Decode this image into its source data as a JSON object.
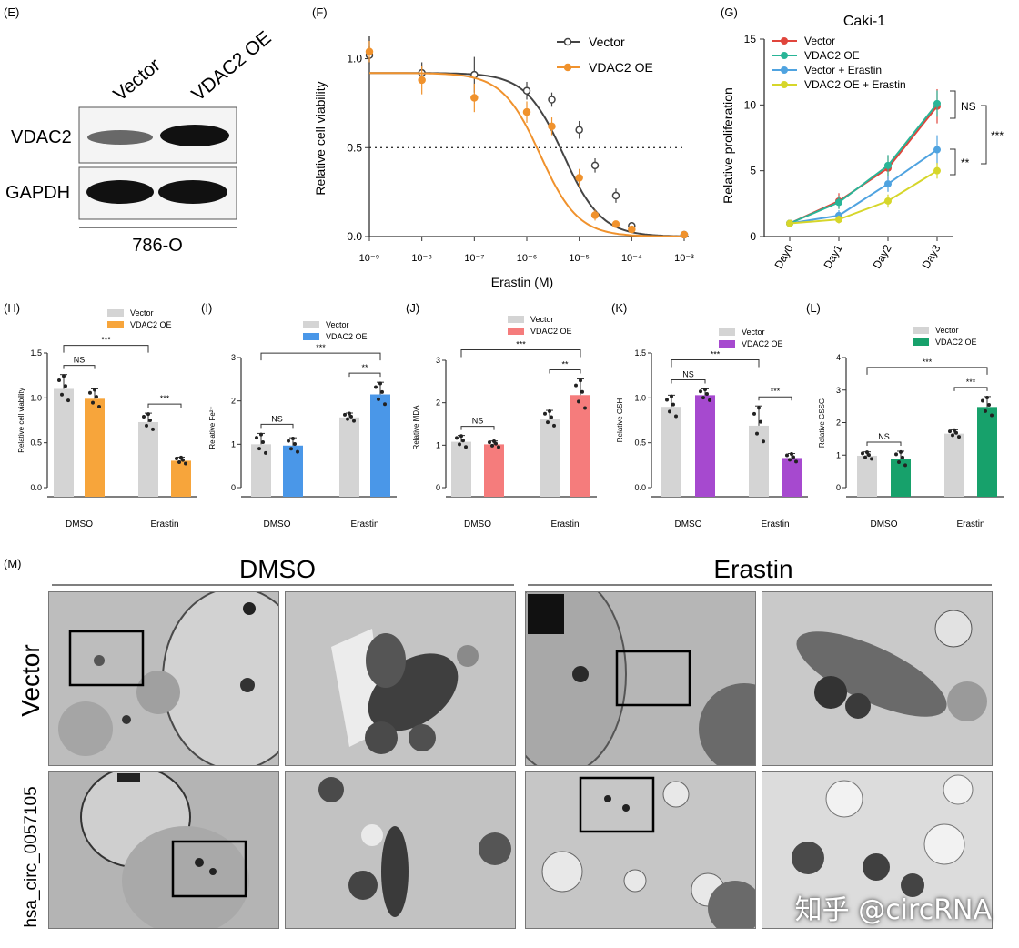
{
  "panels": {
    "E": {
      "label": "(E)",
      "lanes": [
        "Vector",
        "VDAC2 OE"
      ],
      "bands": [
        "VDAC2",
        "GAPDH"
      ],
      "cell_line": "786-O"
    },
    "M": {
      "label": "(M)",
      "conditions": [
        "DMSO",
        "Erastin"
      ],
      "rows": [
        "Vector",
        "hsa_circ_0057105"
      ]
    }
  },
  "watermark": "知乎 @circRNA",
  "colors": {
    "vector": "#d4d4d4",
    "vector_line": "#444444",
    "vdac2_f": "#f0922d",
    "red": "#e0453c",
    "teal": "#29b597",
    "blue": "#4fa3e0",
    "yellow": "#d6d62a",
    "orange": "#f7a53b",
    "blue_bar": "#4a97e8",
    "pink": "#f57c7c",
    "purple": "#a649cf",
    "green": "#17a16b"
  },
  "chart_data": [
    {
      "id": "F",
      "panel_label": "(F)",
      "type": "line",
      "xlabel": "Erastin (M)",
      "ylabel": "Relative cell viability",
      "xscale": "log",
      "xlim": [
        1e-09,
        0.001
      ],
      "ylim": [
        0,
        1.1
      ],
      "x_ticks": [
        "10⁻⁹",
        "10⁻⁸",
        "10⁻⁷",
        "10⁻⁶",
        "10⁻⁵",
        "10⁻⁴",
        "10⁻³"
      ],
      "y_ticks": [
        "0.0",
        "0.5",
        "1.0"
      ],
      "reference_line_y": 0.5,
      "legend": "top-right",
      "series": [
        {
          "name": "Vector",
          "x": [
            1e-09,
            1e-08,
            1e-07,
            1e-06,
            3e-06,
            1e-05,
            2e-05,
            5e-05,
            0.0001,
            0.001
          ],
          "y": [
            1.02,
            0.92,
            0.91,
            0.82,
            0.77,
            0.6,
            0.4,
            0.23,
            0.06,
            0.01
          ],
          "err": [
            0.05,
            0.06,
            0.1,
            0.05,
            0.04,
            0.05,
            0.04,
            0.04,
            0.02,
            0.01
          ],
          "ic50": 5e-06
        },
        {
          "name": "VDAC2 OE",
          "x": [
            1e-09,
            1e-08,
            1e-07,
            1e-06,
            3e-06,
            1e-05,
            2e-05,
            5e-05,
            0.0001,
            0.001
          ],
          "y": [
            1.04,
            0.88,
            0.78,
            0.7,
            0.62,
            0.33,
            0.12,
            0.07,
            0.04,
            0.01
          ],
          "err": [
            0.06,
            0.08,
            0.08,
            0.06,
            0.05,
            0.05,
            0.03,
            0.02,
            0.02,
            0.01
          ],
          "ic50": 1.8e-06
        }
      ]
    },
    {
      "id": "G",
      "panel_label": "(G)",
      "type": "line",
      "title": "Caki-1",
      "ylabel": "Relative proliferation",
      "categories": [
        "Day0",
        "Day1",
        "Day2",
        "Day3"
      ],
      "ylim": [
        0,
        15
      ],
      "y_ticks": [
        "0",
        "5",
        "10",
        "15"
      ],
      "legend": "top-left",
      "series": [
        {
          "name": "Vector",
          "values": [
            1.0,
            2.7,
            5.2,
            9.9
          ],
          "err": [
            0.1,
            0.6,
            0.9,
            1.3
          ]
        },
        {
          "name": "VDAC2 OE",
          "values": [
            1.0,
            2.6,
            5.4,
            10.1
          ],
          "err": [
            0.1,
            0.5,
            0.8,
            1.0
          ]
        },
        {
          "name": "Vector + Erastin",
          "values": [
            1.0,
            1.6,
            4.0,
            6.6
          ],
          "err": [
            0.1,
            0.4,
            0.6,
            1.1
          ]
        },
        {
          "name": "VDAC2 OE + Erastin",
          "values": [
            1.0,
            1.3,
            2.7,
            5.0
          ],
          "err": [
            0.1,
            0.3,
            0.5,
            0.6
          ]
        }
      ],
      "annotations": [
        "NS",
        "**",
        "***"
      ]
    },
    {
      "id": "H",
      "panel_label": "(H)",
      "type": "bar",
      "ylabel": "Relative cell viability",
      "categories": [
        "DMSO",
        "Erastin"
      ],
      "ylim": [
        0,
        1.5
      ],
      "y_ticks": [
        "0.0",
        "0.5",
        "1.0",
        "1.5"
      ],
      "series": [
        {
          "name": "Vector",
          "values": [
            1.1,
            0.73
          ],
          "err": [
            0.16,
            0.1
          ]
        },
        {
          "name": "VDAC2 OE",
          "values": [
            0.99,
            0.3
          ],
          "err": [
            0.11,
            0.04
          ]
        }
      ],
      "annotations": [
        "NS",
        "***",
        "***"
      ]
    },
    {
      "id": "I",
      "panel_label": "(I)",
      "type": "bar",
      "ylabel": "Relative Fe²⁺",
      "categories": [
        "DMSO",
        "Erastin"
      ],
      "ylim": [
        0,
        3
      ],
      "y_ticks": [
        "0",
        "1",
        "2",
        "3"
      ],
      "series": [
        {
          "name": "Vector",
          "values": [
            1.0,
            1.62
          ],
          "err": [
            0.25,
            0.1
          ]
        },
        {
          "name": "VDAC2 OE",
          "values": [
            0.97,
            2.15
          ],
          "err": [
            0.18,
            0.28
          ]
        }
      ],
      "annotations": [
        "NS",
        "**",
        "***"
      ]
    },
    {
      "id": "J",
      "panel_label": "(J)",
      "type": "bar",
      "ylabel": "Relative MDA",
      "categories": [
        "DMSO",
        "Erastin"
      ],
      "ylim": [
        0,
        3
      ],
      "y_ticks": [
        "0",
        "1",
        "2",
        "3"
      ],
      "series": [
        {
          "name": "Vector",
          "values": [
            1.08,
            1.62
          ],
          "err": [
            0.15,
            0.2
          ]
        },
        {
          "name": "VDAC2 OE",
          "values": [
            1.02,
            2.18
          ],
          "err": [
            0.08,
            0.38
          ]
        }
      ],
      "annotations": [
        "NS",
        "**",
        "***"
      ]
    },
    {
      "id": "K",
      "panel_label": "(K)",
      "type": "bar",
      "ylabel": "Relative GSH",
      "categories": [
        "DMSO",
        "Erastin"
      ],
      "ylim": [
        0,
        1.5
      ],
      "y_ticks": [
        "0.0",
        "0.5",
        "1.0",
        "1.5"
      ],
      "series": [
        {
          "name": "Vector",
          "values": [
            0.9,
            0.69
          ],
          "err": [
            0.13,
            0.22
          ]
        },
        {
          "name": "VDAC2 OE",
          "values": [
            1.03,
            0.33
          ],
          "err": [
            0.07,
            0.05
          ]
        }
      ],
      "annotations": [
        "NS",
        "***",
        "***"
      ]
    },
    {
      "id": "L",
      "panel_label": "(L)",
      "type": "bar",
      "ylabel": "Relative GSSG",
      "categories": [
        "DMSO",
        "Erastin"
      ],
      "ylim": [
        0,
        4
      ],
      "y_ticks": [
        "0",
        "1",
        "2",
        "3",
        "4"
      ],
      "series": [
        {
          "name": "Vector",
          "values": [
            0.98,
            1.66
          ],
          "err": [
            0.12,
            0.12
          ]
        },
        {
          "name": "VDAC2 OE",
          "values": [
            0.88,
            2.48
          ],
          "err": [
            0.24,
            0.32
          ]
        }
      ],
      "annotations": [
        "NS",
        "***",
        "***"
      ]
    }
  ]
}
